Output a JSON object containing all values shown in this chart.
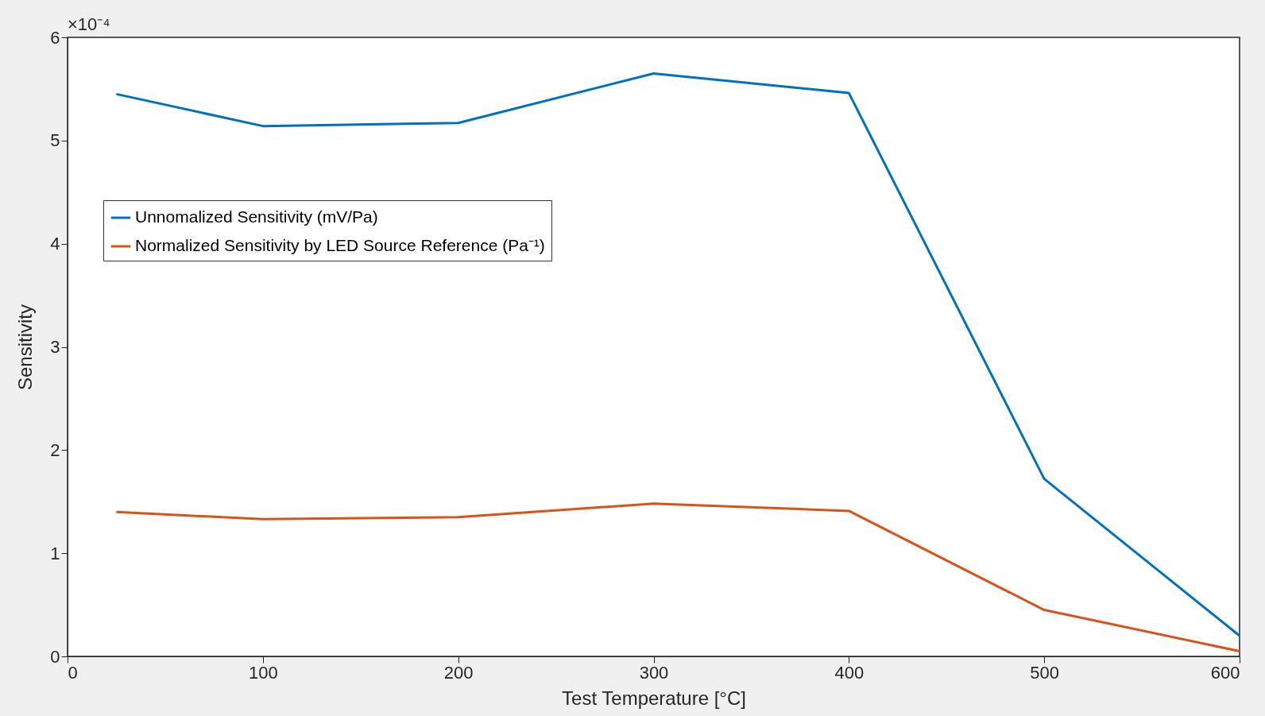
{
  "chart_data": {
    "type": "line",
    "xlabel": "Test Temperature [°C]",
    "ylabel": "Sensitivity",
    "x": [
      25,
      100,
      200,
      300,
      400,
      500,
      600
    ],
    "series": [
      {
        "name": "Unnomalized Sensitivity (mV/Pa)",
        "color": "#0072bd",
        "values": [
          5.45,
          5.14,
          5.17,
          5.65,
          5.46,
          1.72,
          0.2
        ]
      },
      {
        "name": "Normalized Sensitivity by LED Source Reference (Pa⁻¹)",
        "color": "#d95319",
        "values": [
          1.4,
          1.33,
          1.35,
          1.48,
          1.41,
          0.45,
          0.05
        ]
      }
    ],
    "xlim": [
      0,
      600
    ],
    "xticks": [
      0,
      100,
      200,
      300,
      400,
      500,
      600
    ],
    "ylim": [
      0,
      6
    ],
    "yticks": [
      0,
      1,
      2,
      3,
      4,
      5,
      6
    ],
    "annotations": [
      "×10⁻⁴"
    ],
    "legend": "top left",
    "grid": false,
    "marker": "none",
    "line_style": "solid"
  }
}
